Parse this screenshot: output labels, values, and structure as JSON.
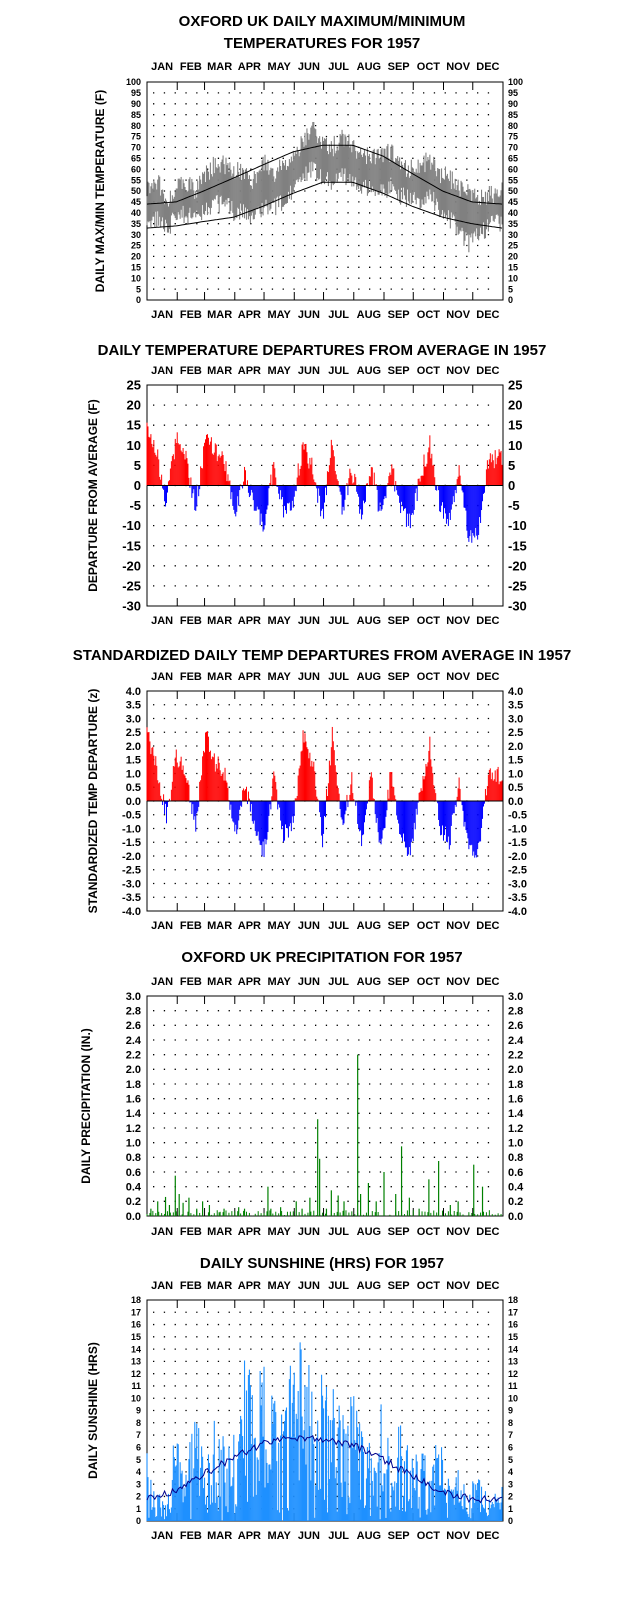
{
  "chart_data": [
    {
      "type": "line",
      "title": [
        "OXFORD UK DAILY MAXIMUM/MINIMUM",
        "TEMPERATURES FOR 1957"
      ],
      "xlabel": "",
      "ylabel": "DAILY MAX/MIN TEMPERATURE (F)",
      "month_labels": [
        "JAN",
        "FEB",
        "MAR",
        "APR",
        "MAY",
        "JUN",
        "JUL",
        "AUG",
        "SEP",
        "OCT",
        "NOV",
        "DEC"
      ],
      "xlim": [
        1,
        365
      ],
      "ylim": [
        0,
        100
      ],
      "yticks": [
        "0",
        "5",
        "10",
        "15",
        "20",
        "25",
        "30",
        "35",
        "40",
        "45",
        "50",
        "55",
        "60",
        "65",
        "70",
        "75",
        "80",
        "85",
        "90",
        "95",
        "100"
      ],
      "grid": true,
      "series": [
        {
          "role": "daily-max-min",
          "color": "#808080",
          "x": [
            1,
            11,
            21,
            31,
            41,
            51,
            61,
            71,
            81,
            91,
            101,
            111,
            121,
            131,
            141,
            151,
            161,
            171,
            181,
            191,
            201,
            211,
            221,
            231,
            241,
            251,
            261,
            271,
            281,
            291,
            301,
            311,
            321,
            331,
            341,
            351,
            365
          ],
          "max": [
            52,
            55,
            46,
            52,
            54,
            50,
            58,
            62,
            62,
            60,
            57,
            55,
            63,
            58,
            62,
            68,
            72,
            80,
            72,
            70,
            74,
            72,
            66,
            66,
            65,
            68,
            62,
            60,
            62,
            64,
            58,
            56,
            52,
            50,
            46,
            48,
            50
          ],
          "min": [
            35,
            38,
            32,
            38,
            40,
            36,
            42,
            44,
            44,
            40,
            40,
            38,
            42,
            42,
            46,
            50,
            56,
            60,
            56,
            54,
            58,
            56,
            52,
            52,
            50,
            52,
            48,
            46,
            46,
            48,
            42,
            38,
            30,
            26,
            30,
            34,
            36
          ]
        },
        {
          "role": "normal-max",
          "color": "#000000",
          "x": [
            1,
            31,
            59,
            90,
            120,
            151,
            181,
            212,
            243,
            273,
            304,
            334,
            365
          ],
          "values": [
            44,
            45,
            50,
            56,
            62,
            68,
            71,
            71,
            66,
            58,
            50,
            45,
            44
          ]
        },
        {
          "role": "normal-min",
          "color": "#000000",
          "x": [
            1,
            31,
            59,
            90,
            120,
            151,
            181,
            212,
            243,
            273,
            304,
            334,
            365
          ],
          "values": [
            33,
            34,
            36,
            38,
            43,
            49,
            54,
            54,
            49,
            43,
            38,
            35,
            33
          ]
        }
      ]
    },
    {
      "type": "bar",
      "title": [
        "DAILY TEMPERATURE DEPARTURES FROM AVERAGE IN 1957"
      ],
      "xlabel": "",
      "ylabel": "DEPARTURE FROM AVERAGE (F)",
      "month_labels": [
        "JAN",
        "FEB",
        "MAR",
        "APR",
        "MAY",
        "JUN",
        "JUL",
        "AUG",
        "SEP",
        "OCT",
        "NOV",
        "DEC"
      ],
      "xlim": [
        1,
        365
      ],
      "ylim": [
        -30,
        25
      ],
      "yticks": [
        "-30",
        "-25",
        "-20",
        "-15",
        "-10",
        "-5",
        "0",
        "5",
        "10",
        "15",
        "20",
        "25"
      ],
      "grid": true,
      "positive_color": "#ff0000",
      "negative_color": "#0000ff",
      "x": [
        1,
        11,
        21,
        31,
        41,
        51,
        61,
        71,
        81,
        91,
        101,
        111,
        121,
        131,
        141,
        151,
        161,
        171,
        181,
        191,
        201,
        211,
        221,
        231,
        241,
        251,
        261,
        271,
        281,
        291,
        301,
        311,
        321,
        331,
        341,
        351,
        365
      ],
      "values": [
        16,
        8,
        -4,
        12,
        7,
        -6,
        12,
        8,
        6,
        -8,
        4,
        -5,
        -10,
        5,
        -6,
        -4,
        10,
        4,
        -8,
        11,
        -6,
        4,
        -7,
        5,
        -8,
        5,
        -5,
        -10,
        2,
        10,
        -5,
        -9,
        4,
        -13,
        -11,
        6,
        7
      ]
    },
    {
      "type": "bar",
      "title": [
        "STANDARDIZED DAILY TEMP DEPARTURES FROM AVERAGE IN 1957"
      ],
      "xlabel": "",
      "ylabel": "STANDARDIZED TEMP DEPARTURE (z)",
      "month_labels": [
        "JAN",
        "FEB",
        "MAR",
        "APR",
        "MAY",
        "JUN",
        "JUL",
        "AUG",
        "SEP",
        "OCT",
        "NOV",
        "DEC"
      ],
      "xlim": [
        1,
        365
      ],
      "ylim": [
        -4,
        4
      ],
      "yticks": [
        "-4.0",
        "-3.5",
        "-3.0",
        "-2.5",
        "-2.0",
        "-1.5",
        "-1.0",
        "-0.5",
        "0.0",
        "0.5",
        "1.0",
        "1.5",
        "2.0",
        "2.5",
        "3.0",
        "3.5",
        "4.0"
      ],
      "grid": true,
      "positive_color": "#ff0000",
      "negative_color": "#0000ff",
      "x": [
        1,
        11,
        21,
        31,
        41,
        51,
        61,
        71,
        81,
        91,
        101,
        111,
        121,
        131,
        141,
        151,
        161,
        171,
        181,
        191,
        201,
        211,
        221,
        231,
        241,
        251,
        261,
        271,
        281,
        291,
        301,
        311,
        321,
        331,
        341,
        351,
        365
      ],
      "values": [
        2.4,
        1.2,
        -0.6,
        1.6,
        1.0,
        -1.0,
        2.4,
        1.4,
        1.0,
        -1.3,
        0.6,
        -0.8,
        -1.9,
        0.8,
        -1.2,
        -0.8,
        2.4,
        1.4,
        -1.4,
        2.4,
        -1.0,
        0.8,
        -1.6,
        1.0,
        -1.9,
        1.0,
        -1.2,
        -2.0,
        0.4,
        2.0,
        -0.9,
        -1.5,
        0.7,
        -1.9,
        -1.7,
        1.0,
        0.9
      ]
    },
    {
      "type": "bar",
      "title": [
        "OXFORD UK PRECIPITATION FOR 1957"
      ],
      "xlabel": "",
      "ylabel": "DAILY PRECIPITATION (IN.)",
      "month_labels": [
        "JAN",
        "FEB",
        "MAR",
        "APR",
        "MAY",
        "JUN",
        "JUL",
        "AUG",
        "SEP",
        "OCT",
        "NOV",
        "DEC"
      ],
      "xlim": [
        1,
        365
      ],
      "ylim": [
        0,
        3
      ],
      "yticks": [
        "0.0",
        "0.2",
        "0.4",
        "0.6",
        "0.8",
        "1.0",
        "1.2",
        "1.4",
        "1.6",
        "1.8",
        "2.0",
        "2.2",
        "2.4",
        "2.6",
        "2.8",
        "3.0"
      ],
      "grid": true,
      "color": "#008000",
      "x": [
        5,
        12,
        20,
        24,
        30,
        34,
        38,
        44,
        52,
        58,
        65,
        75,
        80,
        95,
        101,
        125,
        128,
        138,
        154,
        160,
        168,
        176,
        178,
        185,
        190,
        197,
        203,
        217,
        220,
        228,
        236,
        244,
        256,
        262,
        270,
        280,
        290,
        300,
        312,
        320,
        336,
        345
      ],
      "values": [
        0.1,
        0.2,
        0.26,
        0.15,
        0.55,
        0.3,
        0.18,
        0.25,
        0.1,
        0.2,
        0.15,
        0.05,
        0.1,
        0.12,
        0.1,
        0.4,
        0.1,
        0.12,
        0.2,
        0.1,
        0.25,
        1.32,
        0.78,
        0.1,
        0.35,
        0.28,
        0.2,
        2.2,
        0.3,
        0.45,
        0.2,
        0.6,
        0.3,
        0.95,
        0.25,
        0.1,
        0.5,
        0.75,
        0.15,
        0.2,
        0.7,
        0.4
      ]
    },
    {
      "type": "bar",
      "title": [
        "DAILY SUNSHINE (HRS) FOR 1957"
      ],
      "xlabel": "",
      "ylabel": "DAILY SUNSHINE (HRS)",
      "month_labels": [
        "JAN",
        "FEB",
        "MAR",
        "APR",
        "MAY",
        "JUN",
        "JUL",
        "AUG",
        "SEP",
        "OCT",
        "NOV",
        "DEC"
      ],
      "xlim": [
        1,
        365
      ],
      "ylim": [
        0,
        18
      ],
      "yticks": [
        "0",
        "1",
        "2",
        "3",
        "4",
        "5",
        "6",
        "7",
        "8",
        "9",
        "10",
        "11",
        "12",
        "13",
        "14",
        "15",
        "16",
        "17",
        "18"
      ],
      "grid": true,
      "color": "#1e90ff",
      "normal_color": "#00008b",
      "x": [
        1,
        11,
        21,
        31,
        41,
        51,
        61,
        71,
        81,
        91,
        101,
        111,
        121,
        131,
        141,
        151,
        161,
        171,
        181,
        191,
        201,
        211,
        221,
        231,
        241,
        251,
        261,
        271,
        281,
        291,
        301,
        311,
        321,
        331,
        341,
        351,
        365
      ],
      "values": [
        6,
        3,
        2,
        8,
        5,
        9,
        5,
        9,
        7,
        8,
        14,
        12,
        14,
        10,
        9,
        15,
        15,
        12,
        13,
        11,
        9,
        12,
        8,
        6,
        10,
        6,
        9,
        5,
        6,
        5,
        7,
        4,
        5,
        3,
        4,
        2,
        3
      ],
      "normal_x": [
        1,
        31,
        59,
        90,
        120,
        151,
        181,
        212,
        243,
        273,
        304,
        334,
        365
      ],
      "normal_values": [
        1.8,
        2.5,
        3.8,
        5.2,
        6.3,
        6.8,
        6.7,
        6.2,
        5.0,
        3.7,
        2.3,
        1.8,
        1.8
      ]
    }
  ]
}
